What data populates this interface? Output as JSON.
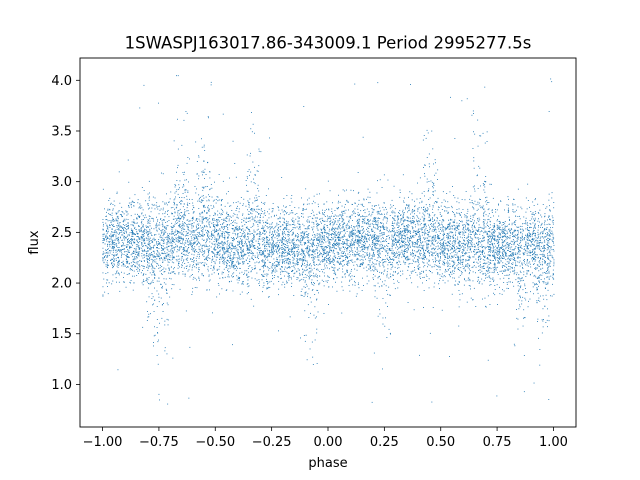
{
  "chart_data": {
    "type": "scatter",
    "title": "1SWASPJ163017.86-343009.1 Period 2995277.5s",
    "xlabel": "phase",
    "ylabel": "flux",
    "xlim": [
      -1.1,
      1.1
    ],
    "ylim": [
      0.58,
      4.22
    ],
    "xticks": [
      -1.0,
      -0.75,
      -0.5,
      -0.25,
      0.0,
      0.25,
      0.5,
      0.75,
      1.0
    ],
    "xtick_labels": [
      "−1.00",
      "−0.75",
      "−0.50",
      "−0.25",
      "0.00",
      "0.25",
      "0.50",
      "0.75",
      "1.00"
    ],
    "yticks": [
      1.0,
      1.5,
      2.0,
      2.5,
      3.0,
      3.5,
      4.0
    ],
    "ytick_labels": [
      "1.0",
      "1.5",
      "2.0",
      "2.5",
      "3.0",
      "3.5",
      "4.0"
    ],
    "marker_color": "#1f77b4",
    "grid": false,
    "series": [
      {
        "phase_range": [
          -1.0,
          1.0
        ],
        "baseline_flux": 2.4,
        "typical_flux_range": [
          2.0,
          2.8
        ],
        "max_flux": 4.05,
        "min_flux": 0.75,
        "bright_excursions_phase": [
          -0.65,
          -0.55,
          -0.33,
          0.45,
          0.67
        ],
        "faint_excursions_phase": [
          -0.78,
          -0.73,
          -0.08,
          0.25,
          0.85,
          0.95
        ]
      }
    ]
  }
}
